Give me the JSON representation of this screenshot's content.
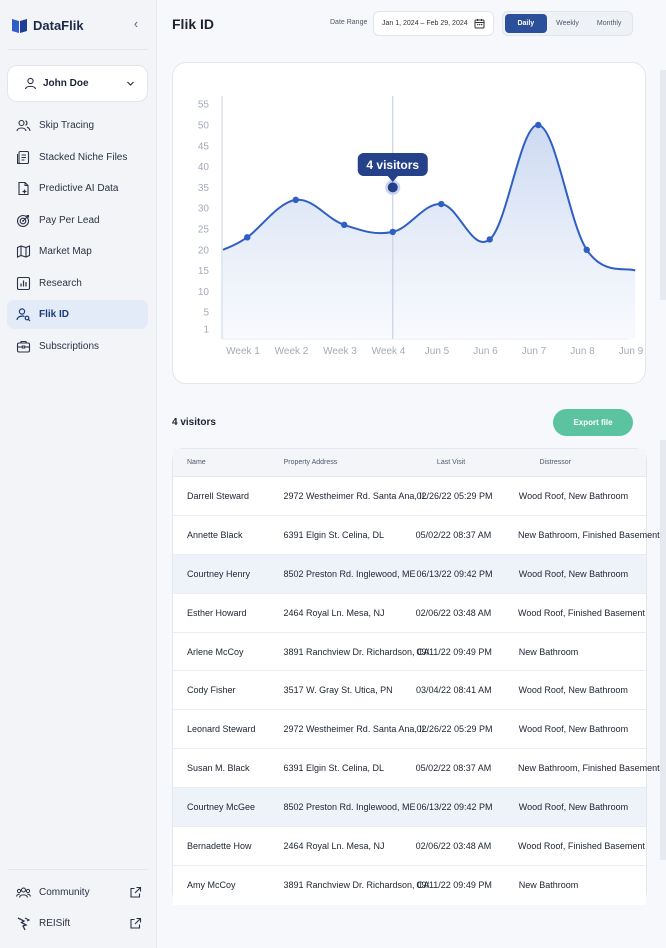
{
  "brand": {
    "name": "DataFlik"
  },
  "sidebar": {
    "collapse_icon": "‹",
    "user": {
      "name": "John Doe"
    },
    "items": [
      {
        "label": "Skip Tracing",
        "icon": "users-icon"
      },
      {
        "label": "Stacked Niche Files",
        "icon": "files-icon"
      },
      {
        "label": "Predictive AI Data",
        "icon": "ai-data-icon"
      },
      {
        "label": "Pay Per Lead",
        "icon": "target-icon"
      },
      {
        "label": "Market Map",
        "icon": "map-icon"
      },
      {
        "label": "Research",
        "icon": "chart-icon"
      },
      {
        "label": "Flik ID",
        "icon": "user-search-icon",
        "active": true
      },
      {
        "label": "Subscriptions",
        "icon": "briefcase-icon"
      }
    ],
    "bottom": [
      {
        "label": "Community",
        "icon": "community-icon"
      },
      {
        "label": "REISift",
        "icon": "reisift-icon"
      }
    ]
  },
  "header": {
    "title": "Flik ID",
    "date_label": "Date Range",
    "date_value": "Jan 1, 2024 – Feb 29, 2024",
    "periods": [
      "Daily",
      "Weekly",
      "Monthly"
    ],
    "active_period": "Daily"
  },
  "chart_data": {
    "type": "area",
    "categories": [
      "Week 1",
      "Week 2",
      "Week 3",
      "Week 4",
      "Jun 5",
      "Jun 6",
      "Jun 7",
      "Jun 8",
      "Jun 9"
    ],
    "y_ticks": [
      1,
      5,
      10,
      15,
      20,
      25,
      30,
      35,
      40,
      45,
      50,
      55
    ],
    "ylim": [
      0,
      55
    ],
    "series": [
      {
        "points": [
          {
            "x": 0.0,
            "y": 20
          },
          {
            "x": 0.25,
            "y": 23
          },
          {
            "x": 0.75,
            "y": 32
          },
          {
            "x": 1.25,
            "y": 26
          },
          {
            "x": 1.75,
            "y": 24.3
          },
          {
            "x": 2.25,
            "y": 31
          },
          {
            "x": 2.75,
            "y": 22.5
          },
          {
            "x": 3.25,
            "y": 50
          },
          {
            "x": 3.75,
            "y": 20
          },
          {
            "x": 4.25,
            "y": 15
          }
        ]
      }
    ],
    "highlight": {
      "x": 1.75,
      "y": 35,
      "label": "4 visitors"
    },
    "colors": {
      "line": "#2f5fc4",
      "fill_top": "#c9d7f1",
      "fill_bottom": "#f3f6fc",
      "tooltip": "#24418a"
    }
  },
  "table": {
    "count_label": "4 visitors",
    "export_label": "Export file",
    "headers": [
      "Name",
      "Property Address",
      "Last Visit",
      "Distressor"
    ],
    "rows": [
      {
        "name": "Darrell Steward",
        "address": "2972 Westheimer Rd. Santa Ana, IL",
        "visit": "02/26/22 05:29 PM",
        "distressor": "Wood Roof, New Bathroom"
      },
      {
        "name": "Annette Black",
        "address": "6391 Elgin St. Celina, DL",
        "visit": "05/02/22 08:37 AM",
        "distressor": "New Bathroom, Finished Basement"
      },
      {
        "name": "Courtney Henry",
        "address": "8502 Preston Rd. Inglewood, ME",
        "visit": "06/13/22 09:42 PM",
        "distressor": "Wood Roof, New Bathroom",
        "highlight": true
      },
      {
        "name": "Esther Howard",
        "address": "2464 Royal Ln. Mesa, NJ",
        "visit": "02/06/22 03:48 AM",
        "distressor": "Wood Roof, Finished Basement"
      },
      {
        "name": "Arlene McCoy",
        "address": "3891 Ranchview Dr. Richardson, CA",
        "visit": "09/11/22 09:49 PM",
        "distressor": "New Bathroom"
      },
      {
        "name": "Cody Fisher",
        "address": "3517 W. Gray St. Utica, PN",
        "visit": "03/04/22 08:41 AM",
        "distressor": "Wood Roof, New Bathroom"
      },
      {
        "name": "Leonard Steward",
        "address": "2972 Westheimer Rd. Santa Ana, IL",
        "visit": "02/26/22 05:29 PM",
        "distressor": "Wood Roof, New Bathroom"
      },
      {
        "name": "Susan M. Black",
        "address": "6391 Elgin St. Celina, DL",
        "visit": "05/02/22 08:37 AM",
        "distressor": "New Bathroom, Finished Basement"
      },
      {
        "name": "Courtney McGee",
        "address": "8502 Preston Rd. Inglewood, ME",
        "visit": "06/13/22 09:42 PM",
        "distressor": "Wood Roof, New Bathroom",
        "highlight": true
      },
      {
        "name": "Bernadette How",
        "address": "2464 Royal Ln. Mesa, NJ",
        "visit": "02/06/22 03:48 AM",
        "distressor": "Wood Roof, Finished Basement"
      },
      {
        "name": "Amy McCoy",
        "address": "3891 Ranchview Dr. Richardson, CA",
        "visit": "09/11/22 09:49 PM",
        "distressor": "New Bathroom"
      }
    ]
  }
}
